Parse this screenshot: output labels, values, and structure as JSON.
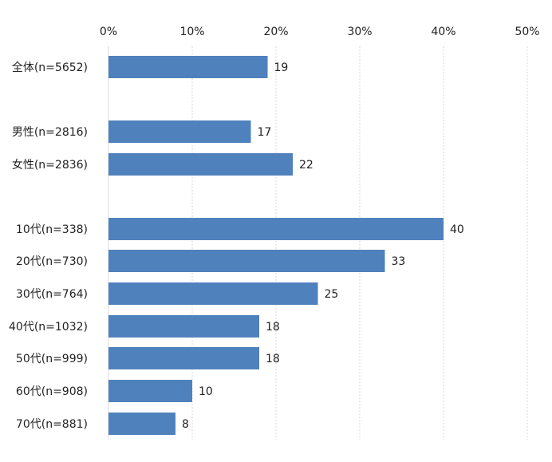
{
  "chart_data": {
    "type": "bar",
    "orientation": "horizontal",
    "title": "",
    "xlabel": "",
    "ylabel": "",
    "xlim": [
      0,
      50
    ],
    "x_ticks": [
      0,
      10,
      20,
      30,
      40,
      50
    ],
    "tick_suffix": "%",
    "tick_position": "top",
    "grid": true,
    "legend": "none",
    "bar_color": "#4f81bd",
    "categories": [
      "全体(n=5652)",
      "男性(n=2816)",
      "女性(n=2836)",
      "10代(n=338)",
      "20代(n=730)",
      "30代(n=764)",
      "40代(n=1032)",
      "50代(n=999)",
      "60代(n=908)",
      "70代(n=881)"
    ],
    "values": [
      19,
      17,
      22,
      40,
      33,
      25,
      18,
      18,
      10,
      8
    ]
  }
}
